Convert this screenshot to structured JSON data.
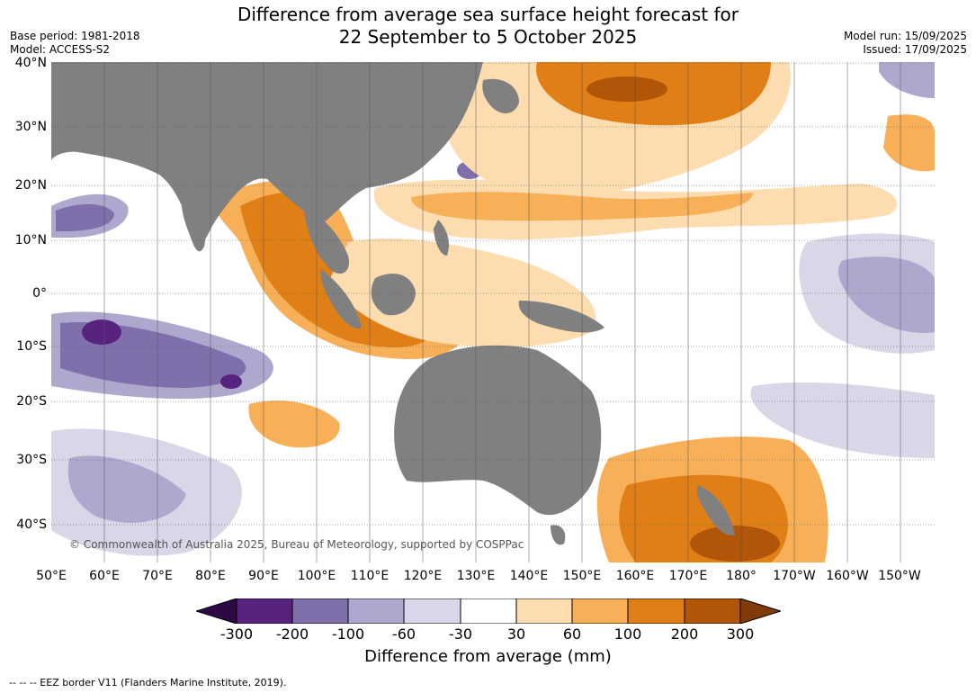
{
  "title_line1": "Difference from average sea surface height forecast for",
  "title_line2": "22 September to 5 October 2025",
  "base_period": "Base period: 1981-2018",
  "model": "Model: ACCESS-S2",
  "model_run": "Model run: 15/09/2025",
  "issued": "Issued: 17/09/2025",
  "lat_labels": [
    "40°N",
    "30°N",
    "20°N",
    "10°N",
    "0°",
    "10°S",
    "20°S",
    "30°S",
    "40°S"
  ],
  "lon_labels": [
    "50°E",
    "60°E",
    "70°E",
    "80°E",
    "90°E",
    "100°E",
    "110°E",
    "120°E",
    "130°E",
    "140°E",
    "150°E",
    "160°E",
    "170°E",
    "180°",
    "170°W",
    "160°W",
    "150°W"
  ],
  "copyright": "© Commonwealth of Australia 2025, Bureau of Meteorology, supported by COSPPac",
  "colorbar": {
    "label": "Difference from average (mm)",
    "ticks": [
      "-300",
      "-200",
      "-100",
      "-60",
      "-30",
      "30",
      "60",
      "100",
      "200",
      "300"
    ],
    "colors": {
      "below_-300": "#2d0a45",
      "-300_-200": "#57237f",
      "-200_-100": "#7f6fab",
      "-100_-60": "#aea8cf",
      "-60_-30": "#d7d7e8",
      "-30_30": "#ffffff",
      "30_60": "#fddcaf",
      "60_100": "#f8b058",
      "100_200": "#e07f16",
      "200_300": "#b15508",
      "above_300": "#7f3b08"
    }
  },
  "land_color": "#808080",
  "footnote": "--  --  -- EEZ border V11 (Flanders Marine Institute, 2019)."
}
